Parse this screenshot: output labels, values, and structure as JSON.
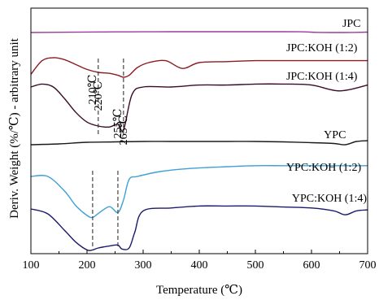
{
  "chart_data": {
    "type": "line",
    "title": "",
    "xlabel": "Temperature (℃)",
    "ylabel": "Deriv. Weight (%/℃) - arbitrary unit",
    "xlim": [
      100,
      700
    ],
    "xticks": [
      "100",
      "200",
      "300",
      "400",
      "500",
      "600",
      "700"
    ],
    "y_ticks_shown": false,
    "grid": false,
    "legend": "none; series labelled directly at right",
    "series": [
      {
        "name": "JPC",
        "color": "#9b3a9c",
        "label_x": 655,
        "baseline": 0,
        "x": [
          100,
          150,
          200,
          250,
          300,
          350,
          400,
          450,
          500,
          550,
          580,
          610,
          640,
          670,
          700
        ],
        "values": [
          0,
          0.3,
          0.6,
          0.8,
          0.9,
          1.0,
          1.0,
          1.0,
          1.0,
          1.0,
          0.9,
          0.2,
          0.0,
          0.1,
          0.5
        ]
      },
      {
        "name": "JPC:KOH (1:2)",
        "color": "#8c1c23",
        "label_x": 555,
        "baseline": 0,
        "x": [
          100,
          120,
          140,
          160,
          180,
          200,
          220,
          240,
          255,
          265,
          275,
          290,
          310,
          340,
          370,
          400,
          450,
          500,
          550,
          600,
          650,
          700
        ],
        "values": [
          -12,
          2,
          5,
          3,
          -2,
          -7,
          -10,
          -11,
          -13,
          -15,
          -13,
          -5,
          0,
          2,
          -6,
          0,
          1,
          2,
          2,
          2,
          2,
          2
        ]
      },
      {
        "name": "JPC:KOH (1:4)",
        "color": "#3b0a26",
        "label_x": 555,
        "baseline": 0,
        "x": [
          100,
          120,
          140,
          160,
          180,
          200,
          220,
          240,
          255,
          265,
          280,
          300,
          350,
          400,
          450,
          500,
          550,
          600,
          650,
          700
        ],
        "values": [
          0,
          3,
          0,
          -12,
          -26,
          -36,
          -40,
          -41,
          -38,
          -44,
          -8,
          0,
          0,
          2,
          2,
          3,
          3,
          2,
          -4,
          2
        ]
      },
      {
        "name": "YPC",
        "color": "#1a1a1a",
        "label_x": 622,
        "baseline": 0,
        "x": [
          100,
          150,
          200,
          250,
          300,
          350,
          400,
          450,
          500,
          550,
          600,
          640,
          660,
          680,
          700
        ],
        "values": [
          0,
          1,
          3,
          3.5,
          4,
          4,
          4,
          4,
          4,
          3.5,
          2.5,
          1.5,
          0,
          4,
          5
        ]
      },
      {
        "name": "YPC:KOH (1:2)",
        "color": "#3fa0d6",
        "label_x": 555,
        "baseline": 0,
        "x": [
          100,
          130,
          160,
          180,
          200,
          210,
          220,
          240,
          255,
          265,
          275,
          290,
          330,
          380,
          450,
          500,
          550,
          600,
          650,
          700
        ],
        "values": [
          0,
          0,
          -15,
          -30,
          -40,
          -42,
          -38,
          -31,
          -37,
          -24,
          -3,
          0,
          5,
          8,
          10,
          11,
          11,
          11,
          11,
          11
        ]
      },
      {
        "name": "YPC:KOH (1:4)",
        "color": "#1c1a6b",
        "label_x": 565,
        "baseline": 0,
        "x": [
          100,
          130,
          160,
          180,
          200,
          210,
          220,
          240,
          255,
          262,
          275,
          285,
          300,
          350,
          400,
          450,
          500,
          550,
          600,
          640,
          660,
          680,
          700
        ],
        "values": [
          0,
          -5,
          -22,
          -34,
          -42,
          -42,
          -40,
          -38,
          -37,
          -41,
          -40,
          -24,
          -2,
          1,
          3,
          3,
          3,
          2,
          1,
          -2,
          -6,
          -2,
          -1
        ]
      }
    ],
    "annotations": [
      {
        "text": "220℃",
        "x": 220,
        "style": "dashed vertical line"
      },
      {
        "text": "265℃",
        "x": 265,
        "style": "dashed vertical line"
      },
      {
        "text": "210℃",
        "x": 210,
        "style": "dashed vertical line"
      },
      {
        "text": "255℃",
        "x": 255,
        "style": "dashed vertical line"
      }
    ]
  }
}
